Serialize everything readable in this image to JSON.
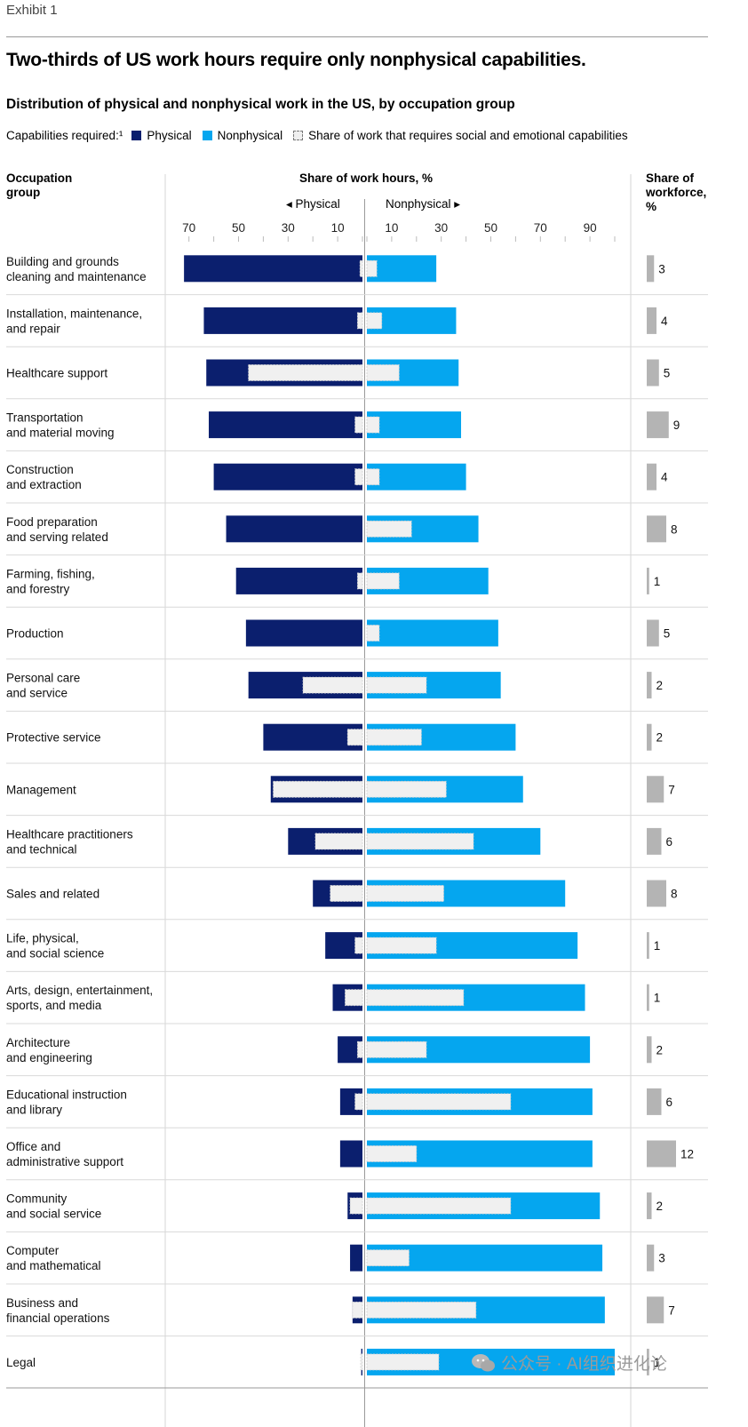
{
  "exhibit": "Exhibit 1",
  "title": "Two-thirds of US work hours require only nonphysical capabilities.",
  "subtitle": "Distribution of physical and nonphysical work in the US, by occupation group",
  "legend": {
    "label": "Capabilities required:¹",
    "physical": "Physical",
    "nonphysical": "Nonphysical",
    "social": "Share of work that requires social and emotional capabilities"
  },
  "headers": {
    "occupation": "Occupation\ngroup",
    "share_hours": "Share of work hours, %",
    "share_workforce": "Share of\nworkforce,\n%",
    "physical_dir": "◂ Physical",
    "nonphysical_dir": "Nonphysical ▸"
  },
  "colors": {
    "physical": "#0b1f6e",
    "nonphysical": "#05a6ef",
    "social": "#f0f0f0",
    "workforce": "#b4b4b4"
  },
  "watermark": "公众号 · AI组织进化论",
  "chart_data": {
    "type": "bar",
    "orientation": "horizontal-diverging",
    "x_left_ticks": [
      "70",
      "50",
      "30",
      "10"
    ],
    "x_right_ticks": [
      "10",
      "30",
      "50",
      "70",
      "90"
    ],
    "x_left_tick_values": [
      70,
      50,
      30,
      10
    ],
    "x_right_tick_values": [
      10,
      30,
      50,
      70,
      90
    ],
    "xlim_physical": [
      0,
      75
    ],
    "xlim_nonphysical": [
      0,
      100
    ],
    "rows": [
      {
        "name": "Building and grounds\ncleaning and maintenance",
        "physical": 72,
        "physical_social": 1,
        "nonphysical": 28,
        "nonphysical_social": 4,
        "workforce": 3
      },
      {
        "name": "Installation, maintenance,\nand repair",
        "physical": 64,
        "physical_social": 2,
        "nonphysical": 36,
        "nonphysical_social": 6,
        "workforce": 4
      },
      {
        "name": "Healthcare support",
        "physical": 63,
        "physical_social": 46,
        "nonphysical": 37,
        "nonphysical_social": 13,
        "workforce": 5
      },
      {
        "name": "Transportation\nand material moving",
        "physical": 62,
        "physical_social": 3,
        "nonphysical": 38,
        "nonphysical_social": 5,
        "workforce": 9
      },
      {
        "name": "Construction\nand extraction",
        "physical": 60,
        "physical_social": 3,
        "nonphysical": 40,
        "nonphysical_social": 5,
        "workforce": 4
      },
      {
        "name": "Food preparation\nand serving related",
        "physical": 55,
        "physical_social": 0,
        "nonphysical": 45,
        "nonphysical_social": 18,
        "workforce": 8
      },
      {
        "name": "Farming, fishing,\nand forestry",
        "physical": 51,
        "physical_social": 2,
        "nonphysical": 49,
        "nonphysical_social": 13,
        "workforce": 1
      },
      {
        "name": "Production",
        "physical": 47,
        "physical_social": 0,
        "nonphysical": 53,
        "nonphysical_social": 5,
        "workforce": 5
      },
      {
        "name": "Personal care\nand service",
        "physical": 46,
        "physical_social": 24,
        "nonphysical": 54,
        "nonphysical_social": 24,
        "workforce": 2
      },
      {
        "name": "Protective service",
        "physical": 40,
        "physical_social": 6,
        "nonphysical": 60,
        "nonphysical_social": 22,
        "workforce": 2
      },
      {
        "name": "Management",
        "physical": 37,
        "physical_social": 36,
        "nonphysical": 63,
        "nonphysical_social": 32,
        "workforce": 7
      },
      {
        "name": "Healthcare practitioners\nand technical",
        "physical": 30,
        "physical_social": 19,
        "nonphysical": 70,
        "nonphysical_social": 43,
        "workforce": 6
      },
      {
        "name": "Sales and related",
        "physical": 20,
        "physical_social": 13,
        "nonphysical": 80,
        "nonphysical_social": 31,
        "workforce": 8
      },
      {
        "name": "Life, physical,\nand social science",
        "physical": 15,
        "physical_social": 3,
        "nonphysical": 85,
        "nonphysical_social": 28,
        "workforce": 1
      },
      {
        "name": "Arts, design, entertainment,\nsports, and media",
        "physical": 12,
        "physical_social": 7,
        "nonphysical": 88,
        "nonphysical_social": 39,
        "workforce": 1
      },
      {
        "name": "Architecture\nand engineering",
        "physical": 10,
        "physical_social": 2,
        "nonphysical": 90,
        "nonphysical_social": 24,
        "workforce": 2
      },
      {
        "name": "Educational instruction\nand library",
        "physical": 9,
        "physical_social": 3,
        "nonphysical": 91,
        "nonphysical_social": 58,
        "workforce": 6
      },
      {
        "name": "Office and\nadministrative support",
        "physical": 9,
        "physical_social": 0,
        "nonphysical": 91,
        "nonphysical_social": 20,
        "workforce": 12
      },
      {
        "name": "Community\nand social service",
        "physical": 6,
        "physical_social": 5,
        "nonphysical": 94,
        "nonphysical_social": 58,
        "workforce": 2
      },
      {
        "name": "Computer\nand mathematical",
        "physical": 5,
        "physical_social": 0,
        "nonphysical": 95,
        "nonphysical_social": 17,
        "workforce": 3
      },
      {
        "name": "Business and\nfinancial operations",
        "physical": 4,
        "physical_social": 4,
        "nonphysical": 96,
        "nonphysical_social": 44,
        "workforce": 7
      },
      {
        "name": "Legal",
        "physical": 0.5,
        "physical_social": 0.5,
        "nonphysical": 100,
        "nonphysical_social": 29,
        "workforce": 1
      }
    ]
  }
}
